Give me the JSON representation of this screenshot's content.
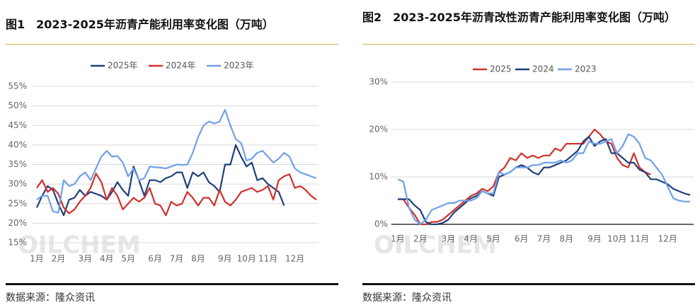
{
  "chart_data": [
    {
      "type": "line",
      "title": "图1　2023-2025年沥青产能利用率变化图（万吨）",
      "source": "数据来源：隆众资讯",
      "watermark": "OILCHEM",
      "categories": [
        "1月",
        null,
        null,
        null,
        "2月",
        null,
        null,
        null,
        null,
        "3月",
        null,
        null,
        null,
        "4月",
        null,
        null,
        null,
        "5月",
        null,
        null,
        null,
        null,
        "6月",
        null,
        null,
        null,
        "7月",
        null,
        null,
        null,
        "8月",
        null,
        null,
        null,
        null,
        "9月",
        null,
        null,
        null,
        "10月",
        null,
        null,
        null,
        "11月",
        null,
        null,
        null,
        null,
        "12月",
        null,
        null,
        null,
        null
      ],
      "series": [
        {
          "name": "2025年",
          "color": "#1f3f7a",
          "values": [
            24,
            27,
            29.5,
            28.5,
            25,
            22,
            26,
            26.5,
            28.5,
            27,
            28,
            27.5,
            27,
            26,
            28,
            30.5,
            28.5,
            27,
            34.5,
            31,
            27,
            31,
            31,
            30.5,
            31.5,
            32,
            33,
            33,
            29,
            33,
            32,
            33,
            30.5,
            29.5,
            28,
            35,
            35,
            40,
            37,
            34.5,
            35.5,
            31,
            31.5,
            30,
            29,
            28,
            24.5,
            null,
            null,
            null,
            null,
            null,
            null
          ]
        },
        {
          "name": "2024年",
          "color": "#d0302c",
          "values": [
            29,
            31,
            28,
            29,
            27.5,
            24,
            22.5,
            23.5,
            25.5,
            27,
            29,
            32.7,
            30.5,
            26,
            29,
            27,
            23.5,
            25,
            26.5,
            25.5,
            26.5,
            29,
            25,
            24.5,
            22,
            25.5,
            24.5,
            25,
            28,
            26.5,
            24.5,
            26.5,
            26.5,
            24.5,
            28.5,
            25.5,
            24.5,
            26,
            28,
            28.5,
            29,
            28,
            28.5,
            29.5,
            26,
            31,
            32,
            32.5,
            29,
            29.5,
            28.5,
            27,
            26
          ]
        },
        {
          "name": "2023年",
          "color": "#6fa0e8",
          "values": [
            26,
            27,
            27,
            23,
            22.7,
            31,
            29.5,
            30,
            32,
            33,
            31,
            34,
            37,
            38.5,
            37,
            37.2,
            35.5,
            32,
            34,
            31,
            31.5,
            34.5,
            34.3,
            34.2,
            34,
            34.5,
            35,
            34.9,
            35,
            38,
            42,
            45,
            46,
            45.5,
            46,
            49,
            45,
            41.5,
            40.5,
            36,
            36.5,
            38,
            38.5,
            37,
            35.5,
            36.5,
            38,
            37,
            34,
            33,
            32.5,
            32,
            31.5
          ]
        }
      ],
      "ylim": [
        15,
        55
      ],
      "yticks": [
        {
          "value": 15,
          "label": "15%"
        },
        {
          "value": 20,
          "label": "20%"
        },
        {
          "value": 25,
          "label": "25%"
        },
        {
          "value": 30,
          "label": "30%"
        },
        {
          "value": 35,
          "label": "35%"
        },
        {
          "value": 40,
          "label": "40%"
        },
        {
          "value": 45,
          "label": "45%"
        },
        {
          "value": 50,
          "label": "50%"
        },
        {
          "value": 55,
          "label": "55%"
        }
      ],
      "grid": true
    },
    {
      "type": "line",
      "title": "图2　2023-2025年沥青改性沥青产能利用率变化图（万吨）",
      "source": "数据来源：隆众资讯",
      "watermark": "OILCHEM",
      "categories": [
        "1月",
        null,
        null,
        null,
        "2月",
        null,
        null,
        null,
        null,
        "3月",
        null,
        null,
        null,
        "4月",
        null,
        null,
        null,
        "5月",
        null,
        null,
        null,
        null,
        "6月",
        null,
        null,
        null,
        "7月",
        null,
        null,
        null,
        "8月",
        null,
        null,
        null,
        null,
        "9月",
        null,
        null,
        null,
        "10月",
        null,
        null,
        null,
        "11月",
        null,
        null,
        null,
        null,
        "12月",
        null,
        null,
        null,
        null
      ],
      "series": [
        {
          "name": "2025",
          "color": "#d0302c",
          "values": [
            5.3,
            5.3,
            3.5,
            2,
            0,
            0,
            0.5,
            0.5,
            1,
            2,
            3,
            4,
            5,
            6,
            6.5,
            7.5,
            7,
            8,
            11,
            12,
            14,
            13.5,
            15,
            14,
            14.5,
            14,
            14.5,
            14.5,
            16,
            15.5,
            17,
            17,
            17,
            17,
            18.5,
            20,
            19,
            17.5,
            17,
            14,
            12.5,
            12,
            15,
            12,
            11,
            10.5,
            null,
            null,
            null,
            null,
            null,
            null,
            null
          ]
        },
        {
          "name": "2024",
          "color": "#1f3f7a",
          "values": [
            5.3,
            5.3,
            5.3,
            4,
            3,
            0.5,
            0,
            0,
            0.3,
            1,
            2.5,
            3.5,
            4.5,
            5.5,
            6,
            7,
            6.5,
            6,
            10,
            10.5,
            11,
            12,
            12.5,
            12,
            11,
            10.5,
            12,
            12,
            12.5,
            13,
            13.5,
            14.5,
            15.5,
            17.5,
            18.5,
            16.5,
            17.5,
            18,
            15,
            15,
            14,
            13,
            13,
            11.5,
            11,
            9.5,
            9.5,
            9,
            8.5,
            7.5,
            7,
            6.5,
            6.2
          ]
        },
        {
          "name": "2023",
          "color": "#6fa0e8",
          "values": [
            9.5,
            9,
            3.5,
            1,
            0,
            1,
            3,
            3.5,
            4,
            4.5,
            4.5,
            5,
            5,
            5,
            5.5,
            7,
            6.5,
            6.5,
            11,
            10.5,
            11,
            12,
            12,
            12,
            12.5,
            12.5,
            13,
            13,
            13,
            13.5,
            13,
            13.5,
            15,
            15,
            17.5,
            17,
            17,
            17.5,
            18,
            15,
            16.5,
            19,
            18.5,
            17,
            14,
            13.5,
            12,
            10.5,
            8,
            5.5,
            5,
            4.8,
            4.8
          ]
        }
      ],
      "ylim": [
        0,
        30
      ],
      "yticks": [
        {
          "value": 0,
          "label": "0%"
        },
        {
          "value": 10,
          "label": "10%"
        },
        {
          "value": 20,
          "label": "20%"
        },
        {
          "value": 30,
          "label": "30%"
        }
      ],
      "grid": true
    }
  ]
}
